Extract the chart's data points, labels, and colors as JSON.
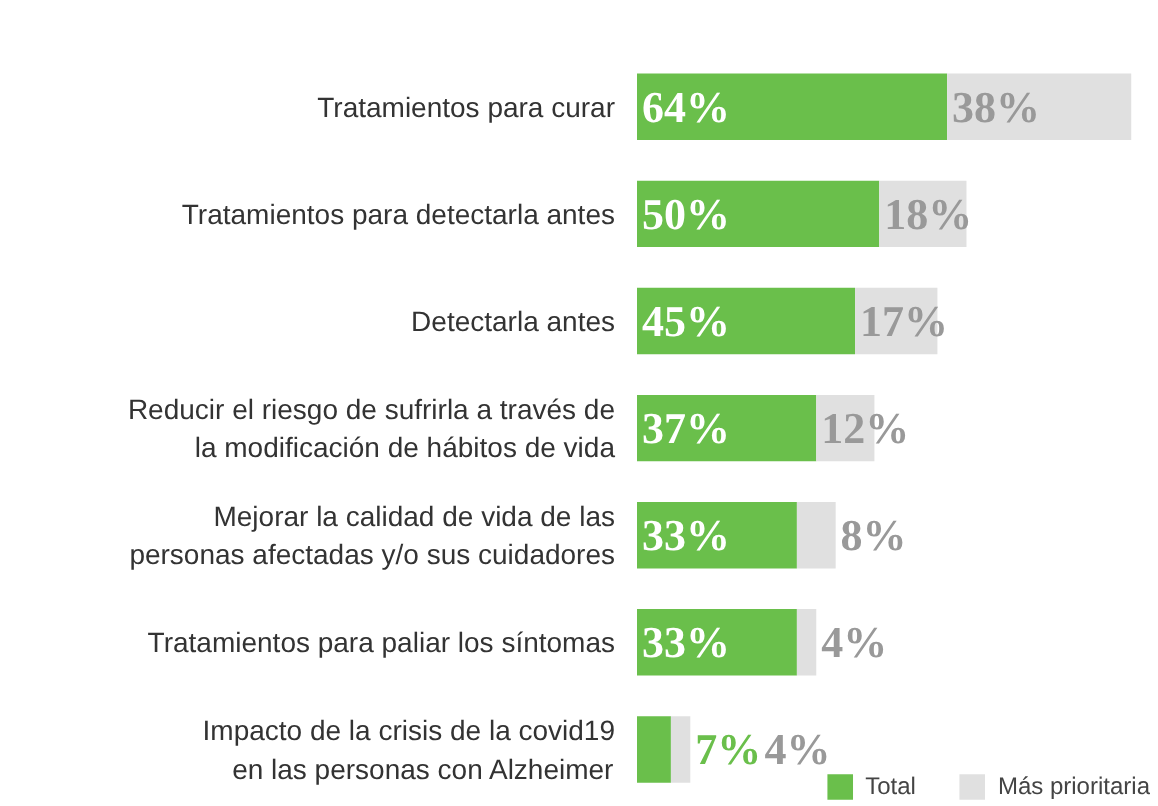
{
  "chart_data": {
    "type": "bar",
    "orientation": "horizontal",
    "stacked": true,
    "categories": [
      "Tratamientos para curar",
      "Tratamientos para detectarla antes",
      "Detectarla antes",
      "Reducir el riesgo de sufrirla a través de\nla modificación de hábitos de vida",
      "Mejorar la calidad de vida de las\npersonas afectadas y/o sus cuidadores",
      "Tratamientos para paliar los síntomas",
      "Impacto de la crisis de la covid19\nen las personas con Alzheimer"
    ],
    "series": [
      {
        "name": "Total",
        "color": "#6abf4b",
        "values": [
          64,
          50,
          45,
          37,
          33,
          33,
          7
        ],
        "value_labels": [
          "64%",
          "50%",
          "45%",
          "37%",
          "33%",
          "33%",
          "7%"
        ]
      },
      {
        "name": "Más prioritaria",
        "color": "#e0e0e0",
        "values": [
          38,
          18,
          17,
          12,
          8,
          4,
          4
        ],
        "value_labels": [
          "38%",
          "18%",
          "17%",
          "12%",
          "8%",
          "4%",
          "4%"
        ]
      }
    ],
    "legend": "bottom right",
    "grid": false
  }
}
